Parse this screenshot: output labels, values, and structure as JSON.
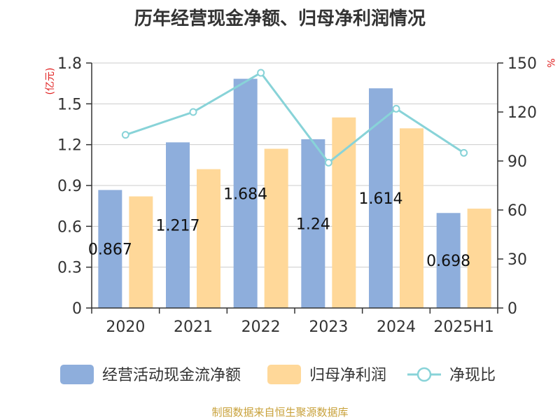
{
  "title": "历年经营现金净额、归母净利润情况",
  "source": "制图数据来自恒生聚源数据库",
  "colors": {
    "operating_cash_flow": "#8eaedc",
    "net_profit": "#ffd899",
    "ratio_line": "#88d3d8",
    "axis": "#333333",
    "grid": "#cccccc",
    "unit": "#e02020",
    "source": "#c8a13a"
  },
  "chart_data": {
    "type": "bar",
    "title": "历年经营现金净额、归母净利润情况",
    "categories": [
      "2020",
      "2021",
      "2022",
      "2023",
      "2024",
      "2025H1"
    ],
    "y_left": {
      "unit_label": "(亿元)",
      "range": [
        0,
        1.8
      ],
      "ticks": [
        "0",
        "0.3",
        "0.6",
        "0.9",
        "1.2",
        "1.5",
        "1.8"
      ]
    },
    "y_right": {
      "unit_label": "%",
      "range": [
        0,
        150
      ],
      "ticks": [
        "0",
        "30",
        "60",
        "90",
        "120",
        "150"
      ]
    },
    "grid": true,
    "legend_position": "bottom",
    "series": [
      {
        "name": "经营活动现金流净额",
        "type": "bar",
        "axis": "left",
        "values": [
          0.867,
          1.217,
          1.684,
          1.24,
          1.614,
          0.698
        ],
        "labels": [
          "0.867",
          "1.217",
          "1.684",
          "1.24",
          "1.614",
          "0.698"
        ]
      },
      {
        "name": "归母净利润",
        "type": "bar",
        "axis": "left",
        "values": [
          0.82,
          1.02,
          1.17,
          1.4,
          1.32,
          0.73
        ]
      },
      {
        "name": "净现比",
        "type": "line",
        "axis": "right",
        "values": [
          106,
          120,
          144,
          89,
          122,
          95
        ]
      }
    ]
  }
}
